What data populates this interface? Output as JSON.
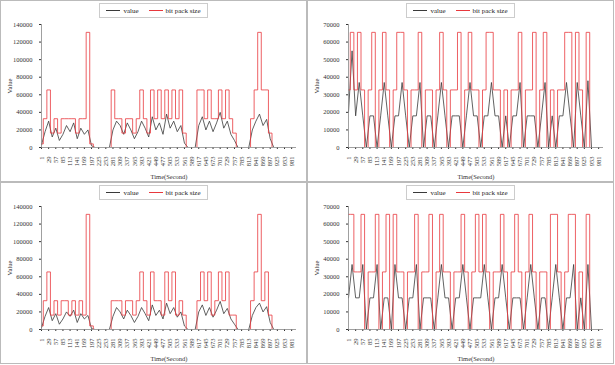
{
  "chart_data": [
    {
      "type": "line",
      "x_label": "Time(Second)",
      "y_label": "Value",
      "legend": "top",
      "grid": false,
      "x": [
        1,
        15,
        29,
        43,
        57,
        71,
        85,
        99,
        113,
        127,
        141,
        155,
        169,
        183,
        197,
        211,
        225,
        239,
        253,
        267,
        281,
        295,
        309,
        323,
        337,
        351,
        365,
        379,
        393,
        407,
        421,
        435,
        449,
        463,
        477,
        491,
        505,
        519,
        533,
        547,
        561,
        575,
        589,
        603,
        617,
        631,
        645,
        659,
        673,
        687,
        701,
        715,
        729,
        743,
        757,
        771,
        785,
        799,
        813,
        827,
        841,
        855,
        869,
        883,
        897,
        911,
        925,
        939,
        953,
        967,
        981,
        995
      ],
      "xlim": [
        1,
        1000
      ],
      "xticks": [
        1,
        29,
        57,
        85,
        113,
        141,
        169,
        197,
        225,
        253,
        281,
        309,
        337,
        365,
        393,
        421,
        449,
        477,
        505,
        533,
        561,
        589,
        617,
        645,
        673,
        701,
        729,
        757,
        785,
        813,
        841,
        869,
        897,
        925,
        953,
        981
      ],
      "ylim": [
        0,
        140000
      ],
      "yticks": [
        0,
        20000,
        40000,
        60000,
        80000,
        100000,
        120000,
        140000
      ],
      "series": [
        {
          "name": "value",
          "color": "#3a3a3a",
          "line_style": "solid",
          "values": [
            3000,
            18000,
            30000,
            12000,
            22000,
            8000,
            15000,
            25000,
            18000,
            28000,
            10000,
            22000,
            15000,
            20000,
            2000,
            0,
            0,
            0,
            0,
            0,
            20000,
            30000,
            25000,
            15000,
            28000,
            20000,
            10000,
            18000,
            30000,
            22000,
            12000,
            35000,
            20000,
            28000,
            15000,
            38000,
            22000,
            30000,
            18000,
            25000,
            5000,
            0,
            0,
            0,
            25000,
            35000,
            20000,
            30000,
            18000,
            28000,
            40000,
            22000,
            30000,
            15000,
            8000,
            0,
            0,
            0,
            0,
            20000,
            30000,
            38000,
            25000,
            32000,
            10000,
            0,
            0,
            0,
            0,
            0,
            0,
            0
          ]
        },
        {
          "name": "bit pack size",
          "color": "#e8383d",
          "line_style": "steps",
          "values": [
            4096,
            32768,
            65536,
            16384,
            32768,
            16384,
            32768,
            32768,
            32768,
            32768,
            16384,
            32768,
            32768,
            131072,
            4096,
            0,
            0,
            0,
            0,
            0,
            65536,
            32768,
            32768,
            16384,
            32768,
            32768,
            16384,
            32768,
            65536,
            32768,
            16384,
            65536,
            32768,
            65536,
            32768,
            65536,
            32768,
            65536,
            32768,
            65536,
            16384,
            0,
            0,
            0,
            65536,
            65536,
            32768,
            65536,
            32768,
            32768,
            65536,
            32768,
            65536,
            32768,
            16384,
            0,
            0,
            0,
            0,
            32768,
            65536,
            131072,
            65536,
            65536,
            16384,
            0,
            0,
            0,
            0,
            0,
            0,
            0
          ]
        }
      ]
    },
    {
      "type": "line",
      "x_label": "Time(Second)",
      "y_label": "Value",
      "legend": "top",
      "grid": false,
      "x": [
        1,
        15,
        29,
        43,
        57,
        71,
        85,
        99,
        113,
        127,
        141,
        155,
        169,
        183,
        197,
        211,
        225,
        239,
        253,
        267,
        281,
        295,
        309,
        323,
        337,
        351,
        365,
        379,
        393,
        407,
        421,
        435,
        449,
        463,
        477,
        491,
        505,
        519,
        533,
        547,
        561,
        575,
        589,
        603,
        617,
        631,
        645,
        659,
        673,
        687,
        701,
        715,
        729,
        743,
        757,
        771,
        785,
        799,
        813,
        827,
        841,
        855,
        869,
        883,
        897,
        911,
        925,
        939,
        953,
        967,
        981,
        995
      ],
      "xlim": [
        1,
        1000
      ],
      "xticks": [
        1,
        29,
        57,
        85,
        113,
        141,
        169,
        197,
        225,
        253,
        281,
        309,
        337,
        365,
        393,
        421,
        449,
        477,
        505,
        533,
        561,
        589,
        617,
        645,
        673,
        701,
        729,
        757,
        785,
        813,
        841,
        869,
        897,
        925,
        953,
        981
      ],
      "ylim": [
        0,
        70000
      ],
      "yticks": [
        0,
        10000,
        20000,
        30000,
        40000,
        50000,
        60000,
        70000
      ],
      "series": [
        {
          "name": "value",
          "color": "#3a3a3a",
          "line_style": "solid",
          "values": [
            20000,
            55000,
            18000,
            37000,
            18000,
            0,
            18000,
            18000,
            0,
            18000,
            37000,
            18000,
            0,
            18000,
            18000,
            37000,
            18000,
            0,
            18000,
            18000,
            37000,
            0,
            18000,
            18000,
            0,
            18000,
            37000,
            18000,
            0,
            18000,
            18000,
            18000,
            0,
            18000,
            37000,
            18000,
            18000,
            0,
            18000,
            18000,
            37000,
            18000,
            18000,
            0,
            18000,
            0,
            18000,
            18000,
            37000,
            0,
            18000,
            18000,
            18000,
            0,
            18000,
            37000,
            0,
            18000,
            0,
            18000,
            18000,
            37000,
            18000,
            0,
            37000,
            18000,
            0,
            38000,
            0,
            0,
            0,
            0
          ]
        },
        {
          "name": "bit pack size",
          "color": "#e8383d",
          "line_style": "steps",
          "values": [
            32768,
            65536,
            32768,
            65536,
            32768,
            0,
            32768,
            65536,
            0,
            32768,
            65536,
            32768,
            0,
            32768,
            65536,
            65536,
            32768,
            0,
            32768,
            32768,
            65536,
            0,
            32768,
            32768,
            0,
            32768,
            65536,
            32768,
            0,
            32768,
            32768,
            65536,
            0,
            32768,
            65536,
            32768,
            32768,
            0,
            32768,
            65536,
            65536,
            32768,
            32768,
            0,
            32768,
            0,
            32768,
            32768,
            65536,
            0,
            32768,
            32768,
            65536,
            0,
            32768,
            65536,
            0,
            32768,
            0,
            32768,
            32768,
            65536,
            65536,
            0,
            65536,
            32768,
            0,
            65536,
            0,
            0,
            0,
            0
          ]
        }
      ]
    },
    {
      "type": "line",
      "x_label": "Time(Second)",
      "y_label": "Value",
      "legend": "top",
      "grid": false,
      "x": [
        1,
        15,
        29,
        43,
        57,
        71,
        85,
        99,
        113,
        127,
        141,
        155,
        169,
        183,
        197,
        211,
        225,
        239,
        253,
        267,
        281,
        295,
        309,
        323,
        337,
        351,
        365,
        379,
        393,
        407,
        421,
        435,
        449,
        463,
        477,
        491,
        505,
        519,
        533,
        547,
        561,
        575,
        589,
        603,
        617,
        631,
        645,
        659,
        673,
        687,
        701,
        715,
        729,
        743,
        757,
        771,
        785,
        799,
        813,
        827,
        841,
        855,
        869,
        883,
        897,
        911,
        925,
        939,
        953,
        967,
        981,
        995
      ],
      "xlim": [
        1,
        1000
      ],
      "xticks": [
        1,
        29,
        57,
        85,
        113,
        141,
        169,
        197,
        225,
        253,
        281,
        309,
        337,
        365,
        393,
        421,
        449,
        477,
        505,
        533,
        561,
        589,
        617,
        645,
        673,
        701,
        729,
        757,
        785,
        813,
        841,
        869,
        897,
        925,
        953,
        981
      ],
      "ylim": [
        0,
        140000
      ],
      "yticks": [
        0,
        20000,
        40000,
        60000,
        80000,
        100000,
        120000,
        140000
      ],
      "series": [
        {
          "name": "value",
          "color": "#3a3a3a",
          "line_style": "solid",
          "values": [
            2000,
            15000,
            25000,
            10000,
            18000,
            6000,
            12000,
            20000,
            15000,
            22000,
            8000,
            18000,
            12000,
            16000,
            1000,
            0,
            0,
            0,
            0,
            0,
            15000,
            25000,
            20000,
            12000,
            22000,
            16000,
            8000,
            15000,
            25000,
            18000,
            10000,
            28000,
            16000,
            22000,
            12000,
            30000,
            18000,
            25000,
            14000,
            20000,
            4000,
            0,
            0,
            0,
            20000,
            28000,
            16000,
            25000,
            14000,
            22000,
            32000,
            18000,
            24000,
            12000,
            6000,
            0,
            0,
            0,
            0,
            16000,
            25000,
            30000,
            20000,
            26000,
            8000,
            0,
            0,
            0,
            0,
            0,
            0,
            0
          ]
        },
        {
          "name": "bit pack size",
          "color": "#e8383d",
          "line_style": "steps",
          "values": [
            4096,
            32768,
            65536,
            16384,
            32768,
            16384,
            32768,
            32768,
            16384,
            32768,
            16384,
            32768,
            16384,
            131072,
            4096,
            0,
            0,
            0,
            0,
            0,
            32768,
            32768,
            32768,
            16384,
            32768,
            32768,
            16384,
            32768,
            65536,
            32768,
            16384,
            65536,
            32768,
            32768,
            16384,
            65536,
            32768,
            65536,
            16384,
            32768,
            16384,
            0,
            0,
            0,
            32768,
            65536,
            32768,
            65536,
            16384,
            32768,
            65536,
            32768,
            65536,
            16384,
            16384,
            0,
            0,
            0,
            0,
            32768,
            65536,
            131072,
            32768,
            65536,
            16384,
            0,
            0,
            0,
            0,
            0,
            0,
            0
          ]
        }
      ]
    },
    {
      "type": "line",
      "x_label": "Time(Second)",
      "y_label": "Value",
      "legend": "top",
      "grid": false,
      "x": [
        1,
        15,
        29,
        43,
        57,
        71,
        85,
        99,
        113,
        127,
        141,
        155,
        169,
        183,
        197,
        211,
        225,
        239,
        253,
        267,
        281,
        295,
        309,
        323,
        337,
        351,
        365,
        379,
        393,
        407,
        421,
        435,
        449,
        463,
        477,
        491,
        505,
        519,
        533,
        547,
        561,
        575,
        589,
        603,
        617,
        631,
        645,
        659,
        673,
        687,
        701,
        715,
        729,
        743,
        757,
        771,
        785,
        799,
        813,
        827,
        841,
        855,
        869,
        883,
        897,
        911,
        925,
        939,
        953,
        967,
        981,
        995
      ],
      "xlim": [
        1,
        1000
      ],
      "xticks": [
        1,
        29,
        57,
        85,
        113,
        141,
        169,
        197,
        225,
        253,
        281,
        309,
        337,
        365,
        393,
        421,
        449,
        477,
        505,
        533,
        561,
        589,
        617,
        645,
        673,
        701,
        729,
        757,
        785,
        813,
        841,
        869,
        897,
        925,
        953,
        981
      ],
      "ylim": [
        0,
        70000
      ],
      "yticks": [
        0,
        10000,
        20000,
        30000,
        40000,
        50000,
        60000,
        70000
      ],
      "series": [
        {
          "name": "value",
          "color": "#3a3a3a",
          "line_style": "solid",
          "values": [
            18000,
            37000,
            18000,
            18000,
            37000,
            0,
            18000,
            18000,
            37000,
            0,
            18000,
            18000,
            0,
            37000,
            18000,
            18000,
            0,
            18000,
            18000,
            37000,
            0,
            18000,
            18000,
            18000,
            0,
            18000,
            37000,
            18000,
            18000,
            0,
            18000,
            18000,
            37000,
            18000,
            0,
            18000,
            18000,
            18000,
            37000,
            18000,
            0,
            18000,
            18000,
            37000,
            18000,
            0,
            18000,
            18000,
            18000,
            0,
            18000,
            37000,
            18000,
            0,
            18000,
            18000,
            0,
            18000,
            37000,
            18000,
            0,
            18000,
            18000,
            37000,
            0,
            18000,
            0,
            37000,
            0,
            0,
            0,
            0
          ]
        },
        {
          "name": "bit pack size",
          "color": "#e8383d",
          "line_style": "steps",
          "values": [
            65536,
            65536,
            32768,
            32768,
            65536,
            0,
            32768,
            32768,
            65536,
            0,
            32768,
            65536,
            0,
            65536,
            32768,
            32768,
            0,
            32768,
            32768,
            65536,
            0,
            32768,
            32768,
            65536,
            0,
            32768,
            65536,
            32768,
            32768,
            0,
            32768,
            32768,
            65536,
            32768,
            0,
            32768,
            65536,
            32768,
            65536,
            32768,
            0,
            32768,
            32768,
            65536,
            32768,
            0,
            32768,
            65536,
            32768,
            0,
            32768,
            65536,
            32768,
            0,
            32768,
            32768,
            0,
            65536,
            65536,
            32768,
            0,
            32768,
            65536,
            65536,
            0,
            32768,
            0,
            65536,
            0,
            0,
            0,
            0
          ]
        }
      ]
    }
  ]
}
